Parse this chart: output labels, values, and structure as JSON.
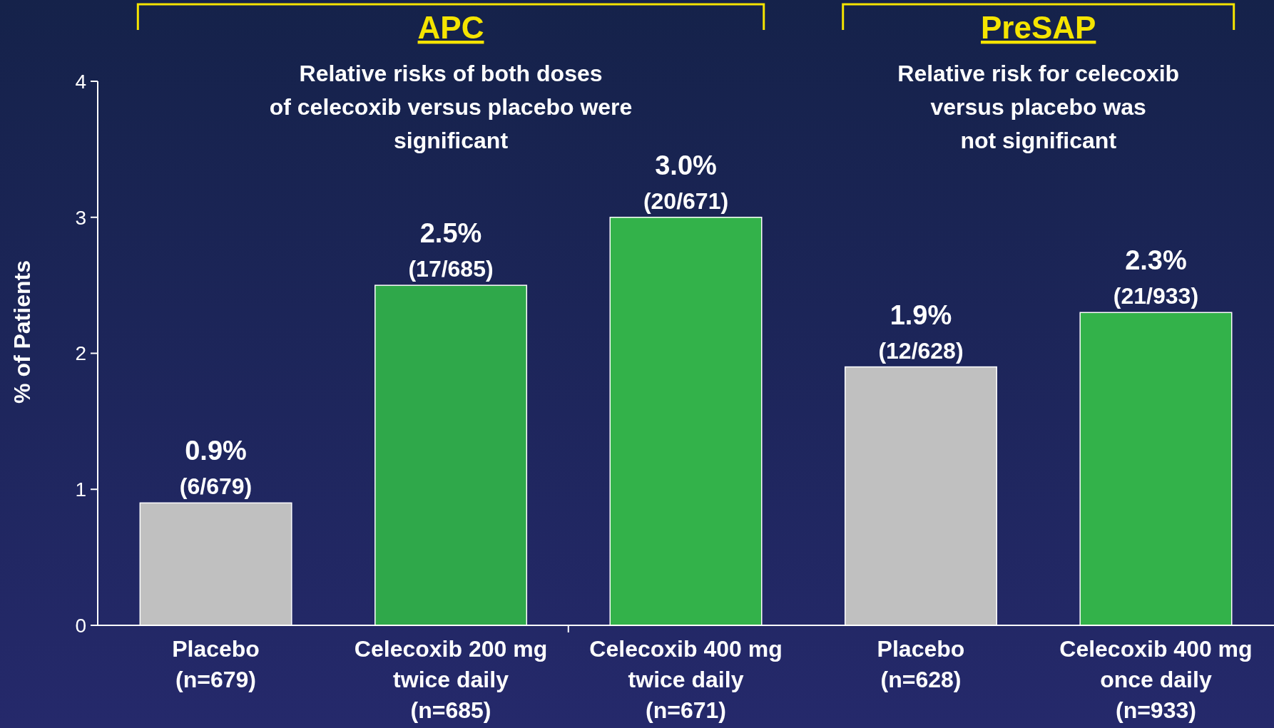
{
  "chart_data": {
    "type": "bar",
    "ylabel": "% of Patients",
    "categories": [
      "Placebo\n(n=679)",
      "Celecoxib 200 mg\ntwice daily\n(n=685)",
      "Celecoxib 400 mg\ntwice daily\n(n=671)",
      "Placebo\n(n=628)",
      "Celecoxib 400 mg\nonce daily\n(n=933)"
    ],
    "values": [
      0.9,
      2.5,
      3.0,
      1.9,
      2.3
    ],
    "colors": [
      "#c0c0c0",
      "#2fa84a",
      "#33b24a",
      "#c0c0c0",
      "#33b24a"
    ],
    "value_labels": [
      "0.9%\n(6/679)",
      "2.5%\n(17/685)",
      "3.0%\n(20/671)",
      "1.9%\n(12/628)",
      "2.3%\n(21/933)"
    ],
    "ylim": [
      0,
      4
    ],
    "yticks": [
      0,
      1,
      2,
      3,
      4
    ],
    "grid": false,
    "annotations": [
      "APC",
      "Relative risks of both doses\nof celecoxib versus placebo were\nsignificant",
      "PreSAP",
      "Relative risk for celecoxib\nversus placebo was\nnot significant"
    ]
  }
}
